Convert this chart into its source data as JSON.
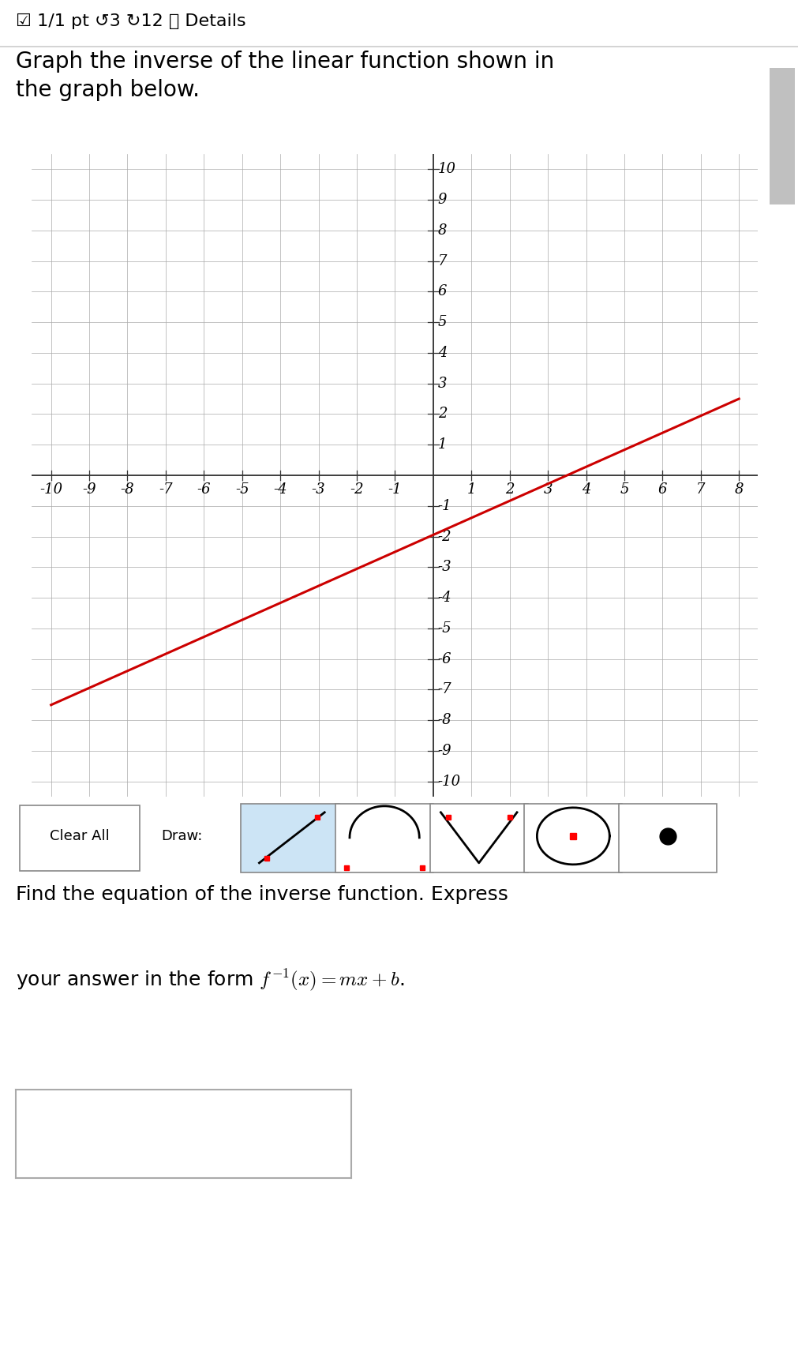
{
  "line_x": [
    -10,
    8
  ],
  "line_y": [
    -7.5,
    2.5
  ],
  "line_color": "#cc0000",
  "line_width": 2.2,
  "xlim": [
    -10.5,
    8.5
  ],
  "ylim": [
    -10.5,
    10.5
  ],
  "xticks": [
    -10,
    -9,
    -8,
    -7,
    -6,
    -5,
    -4,
    -3,
    -2,
    -1,
    1,
    2,
    3,
    4,
    5,
    6,
    7,
    8
  ],
  "yticks": [
    -10,
    -9,
    -8,
    -7,
    -6,
    -5,
    -4,
    -3,
    -2,
    -1,
    1,
    2,
    3,
    4,
    5,
    6,
    7,
    8,
    9,
    10
  ],
  "grid_color": "#aaaaaa",
  "axis_color": "#333333",
  "bg_color": "#ffffff",
  "header_text": "☑ 1/1 pt ↺3 ↻12 ⓘ Details",
  "question_text": "Graph the inverse of the linear function shown in\nthe graph below.",
  "footer_text1": "Find the equation of the inverse function. Express",
  "footer_text2": "your answer in the form $f^{-1}(x) = mx + b$.",
  "font_size_header": 16,
  "font_size_question": 20,
  "font_size_footer": 18,
  "tick_fontsize": 13
}
